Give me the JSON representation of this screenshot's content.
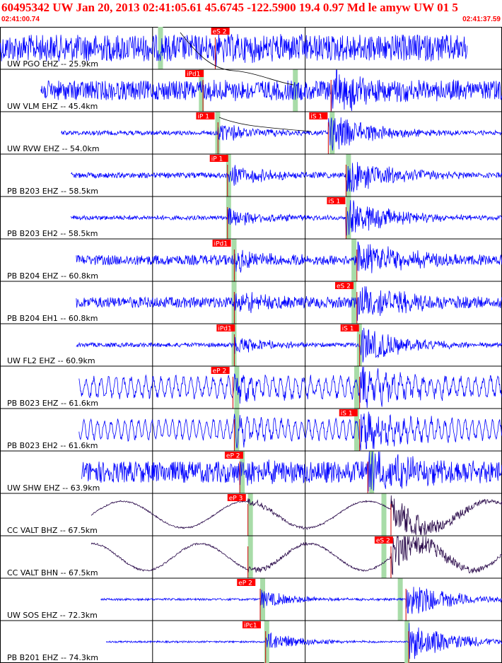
{
  "header": {
    "title": "60495342 UW Jan 20, 2013 02:41:05.61   45.6745 -122.5900 19.4 0.97 Md le amyw UW 01   5",
    "start_time": "02:41:00.74",
    "end_time": "02:41:37.59"
  },
  "colors": {
    "title": "#ff0000",
    "trace": "#0000ff",
    "trace_broadband": "#2a0a4a",
    "pick_box": "#ff0000",
    "pick_text": "#ffffff",
    "window_band": "#a8dca8",
    "grid": "#000000",
    "travel_curve": "#000000"
  },
  "chart_data": {
    "type": "line",
    "x_unit": "s",
    "xlim": [
      "02:41:00.74",
      "02:41:37.59"
    ],
    "gridline_x": [
      11.2,
      22.4
    ],
    "traces": [
      {
        "label": "UW PGO EHZ -- 25.9km",
        "range": [
          0,
          34.3
        ],
        "noise": 0.75,
        "period": 0,
        "amp": 0.38,
        "p_window": 11.6,
        "s_window": null,
        "picks": [
          {
            "name": "eS 2",
            "t": 15.5
          }
        ],
        "onsets": [
          15.8
        ]
      },
      {
        "label": "UW VLM EHZ -- 45.4km",
        "range": [
          3.0,
          37.0
        ],
        "noise": 0.55,
        "period": 0,
        "amp": 0.18,
        "p_window": 14.6,
        "s_window": 21.5,
        "picks": [
          {
            "name": "iPd1",
            "t": 13.6
          }
        ],
        "onsets": [
          14.9,
          24.3
        ]
      },
      {
        "label": "UW RVW EHZ -- 54.0km",
        "range": [
          4.5,
          38.5
        ],
        "noise": 0.12,
        "period": 0,
        "amp": 0.6,
        "p_window": 15.8,
        "s_window": 24.2,
        "picks": [
          {
            "name": "iP 1",
            "t": 14.4
          },
          {
            "name": "iS 1",
            "t": 22.7
          }
        ],
        "onsets": [
          16.0,
          24.1
        ]
      },
      {
        "label": "PB B203 EHZ -- 58.5km",
        "range": [
          5.2,
          39.2
        ],
        "noise": 0.15,
        "period": 0,
        "amp": 0.7,
        "p_window": 16.6,
        "s_window": 25.4,
        "picks": [
          {
            "name": "iP 1",
            "t": 15.4
          }
        ],
        "onsets": [
          16.7,
          25.4
        ]
      },
      {
        "label": "PB B203 EH2 -- 58.5km",
        "range": [
          5.2,
          39.2
        ],
        "noise": 0.12,
        "period": 0,
        "amp": 0.6,
        "p_window": 16.6,
        "s_window": 25.4,
        "picks": [
          {
            "name": "iS 1",
            "t": 24.0
          }
        ],
        "onsets": [
          16.7,
          25.4
        ]
      },
      {
        "label": "PB B204 EHZ -- 60.8km",
        "range": [
          5.6,
          39.6
        ],
        "noise": 0.28,
        "period": 0,
        "amp": 0.6,
        "p_window": 17.0,
        "s_window": 25.8,
        "picks": [
          {
            "name": "iPd1",
            "t": 15.6
          }
        ],
        "onsets": [
          17.2,
          26.2
        ]
      },
      {
        "label": "PB B204 EH1 -- 60.8km",
        "range": [
          5.6,
          39.6
        ],
        "noise": 0.3,
        "period": 0,
        "amp": 0.6,
        "p_window": 17.0,
        "s_window": 25.8,
        "picks": [
          {
            "name": "eS 2",
            "t": 24.6
          }
        ],
        "onsets": [
          17.2,
          26.2
        ]
      },
      {
        "label": "UW FL2 EHZ -- 60.9km",
        "range": [
          5.6,
          39.6
        ],
        "noise": 0.12,
        "period": 0,
        "amp": 0.5,
        "p_window": 17.0,
        "s_window": 26.2,
        "picks": [
          {
            "name": "iPd1",
            "t": 15.9
          },
          {
            "name": "iS 1",
            "t": 25.0
          }
        ],
        "onsets": [
          17.2,
          26.4
        ]
      },
      {
        "label": "PB B023 EHZ -- 61.6km",
        "range": [
          5.8,
          39.8
        ],
        "noise": 0.2,
        "period": 0.55,
        "amp": 0.6,
        "p_window": 17.2,
        "s_window": 26.0,
        "picks": [
          {
            "name": "eP 2",
            "t": 15.5
          }
        ],
        "onsets": [
          17.1,
          26.4
        ]
      },
      {
        "label": "PB B023 EH2 -- 61.6km",
        "range": [
          5.8,
          39.8
        ],
        "noise": 0.15,
        "period": 0.5,
        "amp": 0.6,
        "p_window": 17.2,
        "s_window": 26.0,
        "picks": [
          {
            "name": "iS 1",
            "t": 24.9
          }
        ],
        "onsets": [
          17.2,
          26.4
        ]
      },
      {
        "label": "UW SHW EHZ -- 63.9km",
        "range": [
          6.0,
          40.0
        ],
        "noise": 0.6,
        "period": 0,
        "amp": 0.35,
        "p_window": 17.6,
        "s_window": 27.1,
        "picks": [
          {
            "name": "eP 2",
            "t": 16.5
          }
        ],
        "onsets": [
          17.6,
          27.0
        ]
      },
      {
        "label": "CC VALT BHZ -- 67.5km",
        "range": [
          6.7,
          40.7
        ],
        "noise": 0.04,
        "period": 9.0,
        "amp": 0.25,
        "p_window": 18.2,
        "s_window": 28.0,
        "picks": [
          {
            "name": "eP 3",
            "t": 16.7
          }
        ],
        "onsets": [
          18.2,
          28.7
        ]
      },
      {
        "label": "CC VALT BHN -- 67.5km",
        "range": [
          6.7,
          40.7
        ],
        "noise": 0.05,
        "period": 8.0,
        "amp": 0.25,
        "p_window": 18.2,
        "s_window": 28.0,
        "picks": [
          {
            "name": "eS 2",
            "t": 27.5
          }
        ],
        "onsets": [
          18.2,
          28.7
        ]
      },
      {
        "label": "UW SOS EHZ -- 72.3km",
        "range": [
          7.4,
          41.4
        ],
        "noise": 0.06,
        "period": 0,
        "amp": 0.55,
        "p_window": 19.1,
        "s_window": 29.2,
        "picks": [
          {
            "name": "eP 2",
            "t": 17.4
          }
        ],
        "onsets": [
          19.1,
          29.8
        ]
      },
      {
        "label": "PB B201 EHZ -- 74.3km",
        "range": [
          7.8,
          41.8
        ],
        "noise": 0.05,
        "period": 0,
        "amp": 0.6,
        "p_window": 19.4,
        "s_window": 29.7,
        "picks": [
          {
            "name": "iPc1",
            "t": 17.8
          }
        ],
        "onsets": [
          19.5,
          30.0
        ]
      }
    ]
  }
}
